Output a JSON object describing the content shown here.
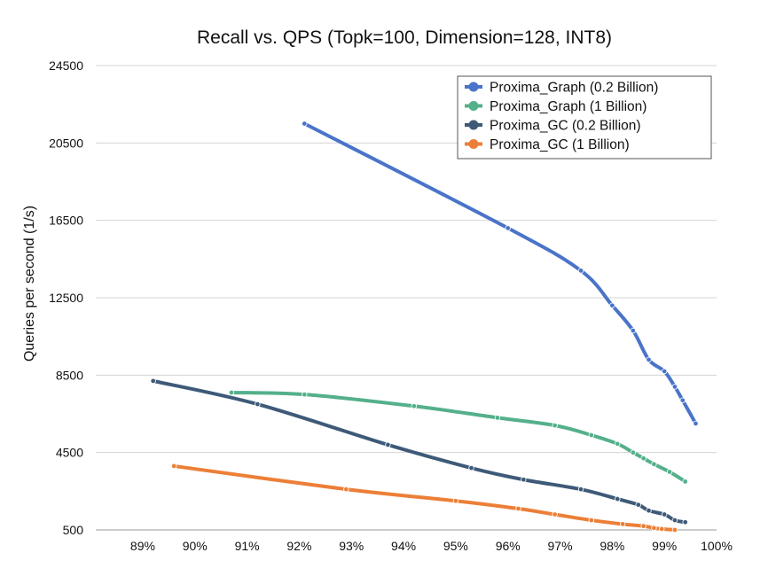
{
  "chart_data": {
    "type": "line",
    "title": "Recall vs. QPS (Topk=100, Dimension=128, INT8)",
    "xlabel": "",
    "ylabel": "Queries per second (1/s)",
    "xlim": [
      88.1,
      100
    ],
    "ylim": [
      500,
      24500
    ],
    "x_ticks": [
      89,
      90,
      91,
      92,
      93,
      94,
      95,
      96,
      97,
      98,
      99,
      100
    ],
    "x_tick_labels": [
      "89%",
      "90%",
      "91%",
      "92%",
      "93%",
      "94%",
      "95%",
      "96%",
      "97%",
      "98%",
      "99%",
      "100%"
    ],
    "y_ticks": [
      500,
      4500,
      8500,
      12500,
      16500,
      20500,
      24500
    ],
    "y_tick_labels": [
      "500",
      "4500",
      "8500",
      "12500",
      "16500",
      "20500",
      "24500"
    ],
    "grid": "horizontal",
    "legend_position": "top-right",
    "series": [
      {
        "name": "Proxima_Graph (0.2 Billion)",
        "color": "#4a74c9",
        "x": [
          92.1,
          96.0,
          97.4,
          98.0,
          98.4,
          98.7,
          99.0,
          99.2,
          99.35,
          99.6
        ],
        "y": [
          21500,
          16100,
          13900,
          12100,
          10800,
          9300,
          8700,
          7900,
          7200,
          6000
        ]
      },
      {
        "name": "Proxima_Graph (1 Billion)",
        "color": "#54b08a",
        "x": [
          90.7,
          92.1,
          94.2,
          95.8,
          96.9,
          97.6,
          98.1,
          98.4,
          98.6,
          98.8,
          99.1,
          99.4
        ],
        "y": [
          7600,
          7500,
          6900,
          6300,
          5900,
          5400,
          4950,
          4500,
          4200,
          3900,
          3500,
          3000
        ]
      },
      {
        "name": "Proxima_GC (0.2 Billion)",
        "color": "#3e5a78",
        "x": [
          89.2,
          91.2,
          93.7,
          95.3,
          96.3,
          97.4,
          98.1,
          98.5,
          98.7,
          99.0,
          99.2,
          99.4
        ],
        "y": [
          8200,
          7000,
          4900,
          3700,
          3100,
          2600,
          2100,
          1800,
          1500,
          1300,
          1000,
          900
        ]
      },
      {
        "name": "Proxima_GC (1 Billion)",
        "color": "#ec7f37",
        "x": [
          89.6,
          92.9,
          95.0,
          96.2,
          96.9,
          97.6,
          98.2,
          98.6,
          98.8,
          98.95,
          99.2
        ],
        "y": [
          3800,
          2600,
          2000,
          1600,
          1300,
          1000,
          800,
          700,
          600,
          550,
          500
        ]
      }
    ]
  }
}
